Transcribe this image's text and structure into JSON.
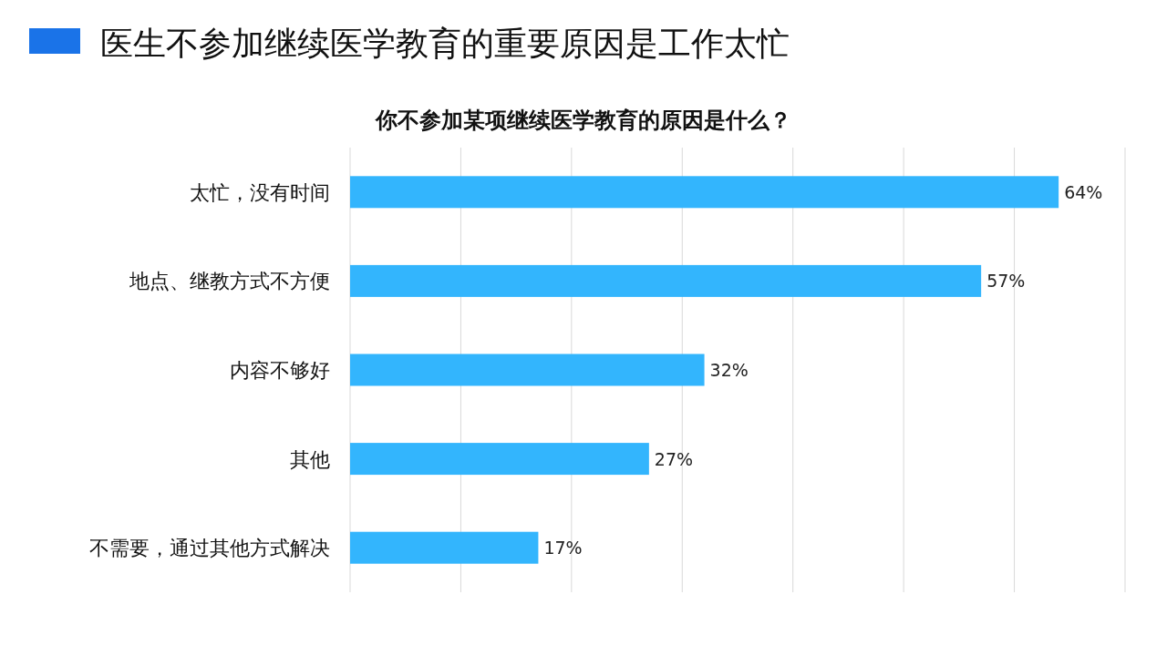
{
  "chart_data": {
    "type": "bar",
    "orientation": "horizontal",
    "title": "医生不参加继续医学教育的重要原因是工作太忙",
    "subtitle": "你不参加某项继续医学教育的原因是什么？",
    "categories": [
      "太忙，没有时间",
      "地点、继教方式不方便",
      "内容不够好",
      "其他",
      "不需要，通过其他方式解决"
    ],
    "values": [
      64,
      57,
      32,
      27,
      17
    ],
    "value_labels": [
      "64%",
      "57%",
      "32%",
      "27%",
      "17%"
    ],
    "color": "#33b5fd",
    "xlim": [
      0,
      70
    ],
    "xticks": [
      {
        "value": 0,
        "label": null
      },
      {
        "value": 10,
        "label": null
      },
      {
        "value": 20,
        "label": null
      },
      {
        "value": 30,
        "label": null
      },
      {
        "value": 40,
        "label": null
      },
      {
        "value": 50,
        "label": null
      },
      {
        "value": 60,
        "label": null
      },
      {
        "value": 70,
        "label": null
      }
    ],
    "grid": "x",
    "tick_labels": "y"
  }
}
